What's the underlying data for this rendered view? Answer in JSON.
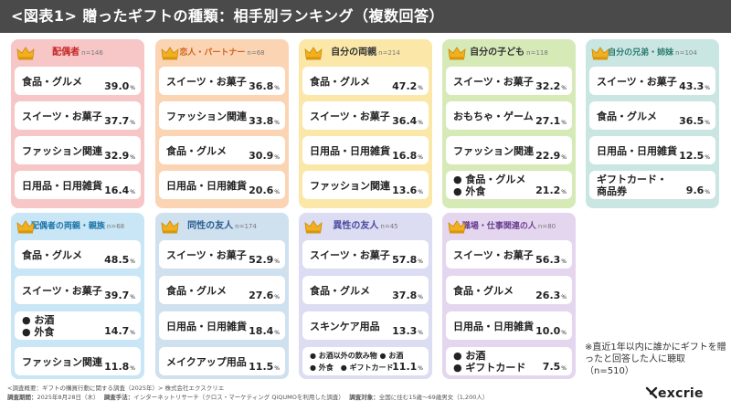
{
  "title": "<図表1> 贈ったギフトの種類：相手別ランキング（複数回答）",
  "note": "※直近1年以内に誰かにギフトを贈ったと回答した人に聴取（n=510）",
  "footer": {
    "line1": "<調査概要：ギフトの購買行動に関する調査（2025年）> 株式会社エクスクリエ",
    "period_label": "調査期間：",
    "period": "2025年8月28日（木）",
    "method_label": "調査手法：",
    "method": "インターネットリサーチ（クロス・マーケティング QiQUMOを利用した調査）",
    "target_label": "調査対象：",
    "target": "全国に住む15歳～69歳男女（1,200人）"
  },
  "logo": "excrie",
  "pct_unit": "%",
  "chart_data": {
    "type": "table",
    "title": "<図表1> 贈ったギフトの種類：相手別ランキング（複数回答）",
    "unit": "%",
    "groups": [
      {
        "name": "配偶者",
        "n": "n=146",
        "theme": "#f7c6c6",
        "items": [
          {
            "label": [
              "食品・グルメ"
            ],
            "value": 39.0
          },
          {
            "label": [
              "スイーツ・お菓子"
            ],
            "value": 37.7
          },
          {
            "label": [
              "ファッション関連"
            ],
            "value": 32.9
          },
          {
            "label": [
              "日用品・日用雑貨"
            ],
            "value": 16.4
          }
        ]
      },
      {
        "name": "恋人・パートナー",
        "n": "n=68",
        "theme": "#fbd4b4",
        "items": [
          {
            "label": [
              "スイーツ・お菓子"
            ],
            "value": 36.8
          },
          {
            "label": [
              "ファッション関連"
            ],
            "value": 33.8
          },
          {
            "label": [
              "食品・グルメ"
            ],
            "value": 30.9
          },
          {
            "label": [
              "日用品・日用雑貨"
            ],
            "value": 20.6
          }
        ]
      },
      {
        "name": "自分の両親",
        "n": "n=214",
        "theme": "#fbe8a8",
        "items": [
          {
            "label": [
              "食品・グルメ"
            ],
            "value": 47.2
          },
          {
            "label": [
              "スイーツ・お菓子"
            ],
            "value": 36.4
          },
          {
            "label": [
              "日用品・日用雑貨"
            ],
            "value": 16.8
          },
          {
            "label": [
              "ファッション関連"
            ],
            "value": 13.6
          }
        ]
      },
      {
        "name": "自分の子ども",
        "n": "n=118",
        "theme": "#d6eab7",
        "items": [
          {
            "label": [
              "スイーツ・お菓子"
            ],
            "value": 32.2
          },
          {
            "label": [
              "おもちゃ・ゲーム"
            ],
            "value": 27.1
          },
          {
            "label": [
              "ファッション関連"
            ],
            "value": 22.9
          },
          {
            "label": [
              "● 食品・グルメ",
              "● 外食"
            ],
            "value": 21.2
          }
        ]
      },
      {
        "name": "自分の兄弟・姉妹",
        "n": "n=104",
        "theme": "#c9e6e2",
        "items": [
          {
            "label": [
              "スイーツ・お菓子"
            ],
            "value": 43.3
          },
          {
            "label": [
              "食品・グルメ"
            ],
            "value": 36.5
          },
          {
            "label": [
              "日用品・日用雑貨"
            ],
            "value": 12.5
          },
          {
            "label": [
              "ギフトカード・",
              "商品券"
            ],
            "value": 9.6
          }
        ]
      },
      {
        "name": "配偶者の両親・親族",
        "n": "n=68",
        "theme": "#c8e6f5",
        "items": [
          {
            "label": [
              "食品・グルメ"
            ],
            "value": 48.5
          },
          {
            "label": [
              "スイーツ・お菓子"
            ],
            "value": 39.7
          },
          {
            "label": [
              "● お酒",
              "● 外食"
            ],
            "value": 14.7
          },
          {
            "label": [
              "ファッション関連"
            ],
            "value": 11.8
          }
        ]
      },
      {
        "name": "同性の友人",
        "n": "n=174",
        "theme": "#cfe0ef",
        "items": [
          {
            "label": [
              "スイーツ・お菓子"
            ],
            "value": 52.9
          },
          {
            "label": [
              "食品・グルメ"
            ],
            "value": 27.6
          },
          {
            "label": [
              "日用品・日用雑貨"
            ],
            "value": 18.4
          },
          {
            "label": [
              "メイクアップ用品"
            ],
            "value": 11.5
          }
        ]
      },
      {
        "name": "異性の友人",
        "n": "n=45",
        "theme": "#dcdcf3",
        "items": [
          {
            "label": [
              "スイーツ・お菓子"
            ],
            "value": 57.8
          },
          {
            "label": [
              "食品・グルメ"
            ],
            "value": 37.8
          },
          {
            "label": [
              "スキンケア用品"
            ],
            "value": 13.3
          },
          {
            "label": [
              "● お酒以外の飲み物 ● お酒",
              "● 外食　● ギフトカード"
            ],
            "value": 11.1
          }
        ]
      },
      {
        "name": "職場・仕事関連の人",
        "n": "n=80",
        "theme": "#e4d6ef",
        "items": [
          {
            "label": [
              "スイーツ・お菓子"
            ],
            "value": 56.3
          },
          {
            "label": [
              "食品・グルメ"
            ],
            "value": 26.3
          },
          {
            "label": [
              "日用品・日用雑貨"
            ],
            "value": 10.0
          },
          {
            "label": [
              "● お酒",
              "● ギフトカード"
            ],
            "value": 7.5
          }
        ]
      }
    ]
  }
}
